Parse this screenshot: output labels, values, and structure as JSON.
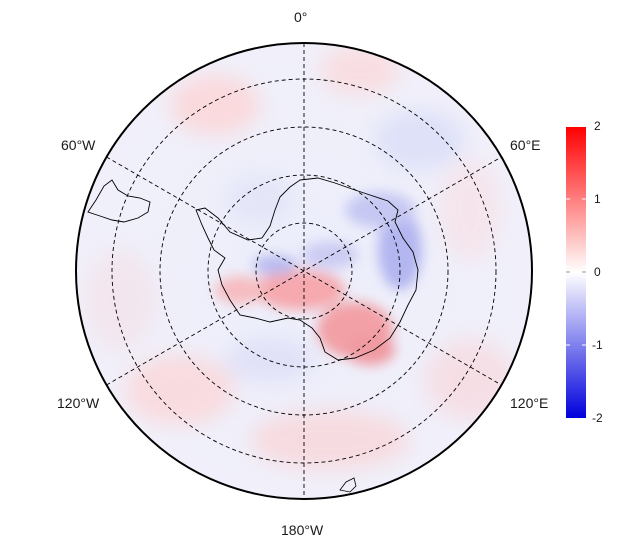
{
  "map": {
    "projection": "south-polar-stereographic",
    "graticule": {
      "style": "dashed",
      "latitude_circles": 3,
      "meridian_step_deg": 60
    },
    "longitude_labels": {
      "top": "0°",
      "upper_left": "60°W",
      "upper_right": "60°E",
      "lower_left": "120°W",
      "lower_right": "120°E",
      "bottom": "180°W"
    },
    "field": {
      "description_values": "anomaly field on diverging blue-white-red scale",
      "positive_regions": [
        "Antarctic Peninsula / Bellingshausen Sea",
        "Ross Ice Shelf region",
        "Southern Ocean near 150°W-180°"
      ],
      "negative_regions": [
        "East Antarctica coast near 60°E-90°E",
        "Weddell Sea"
      ]
    }
  },
  "colorbar": {
    "min": -2,
    "max": 2,
    "colors": {
      "low": "#0000dd",
      "mid": "#ffffff",
      "high": "#ff0000"
    },
    "ticks": [
      "2",
      "1",
      "0",
      "-1",
      "-2"
    ]
  }
}
